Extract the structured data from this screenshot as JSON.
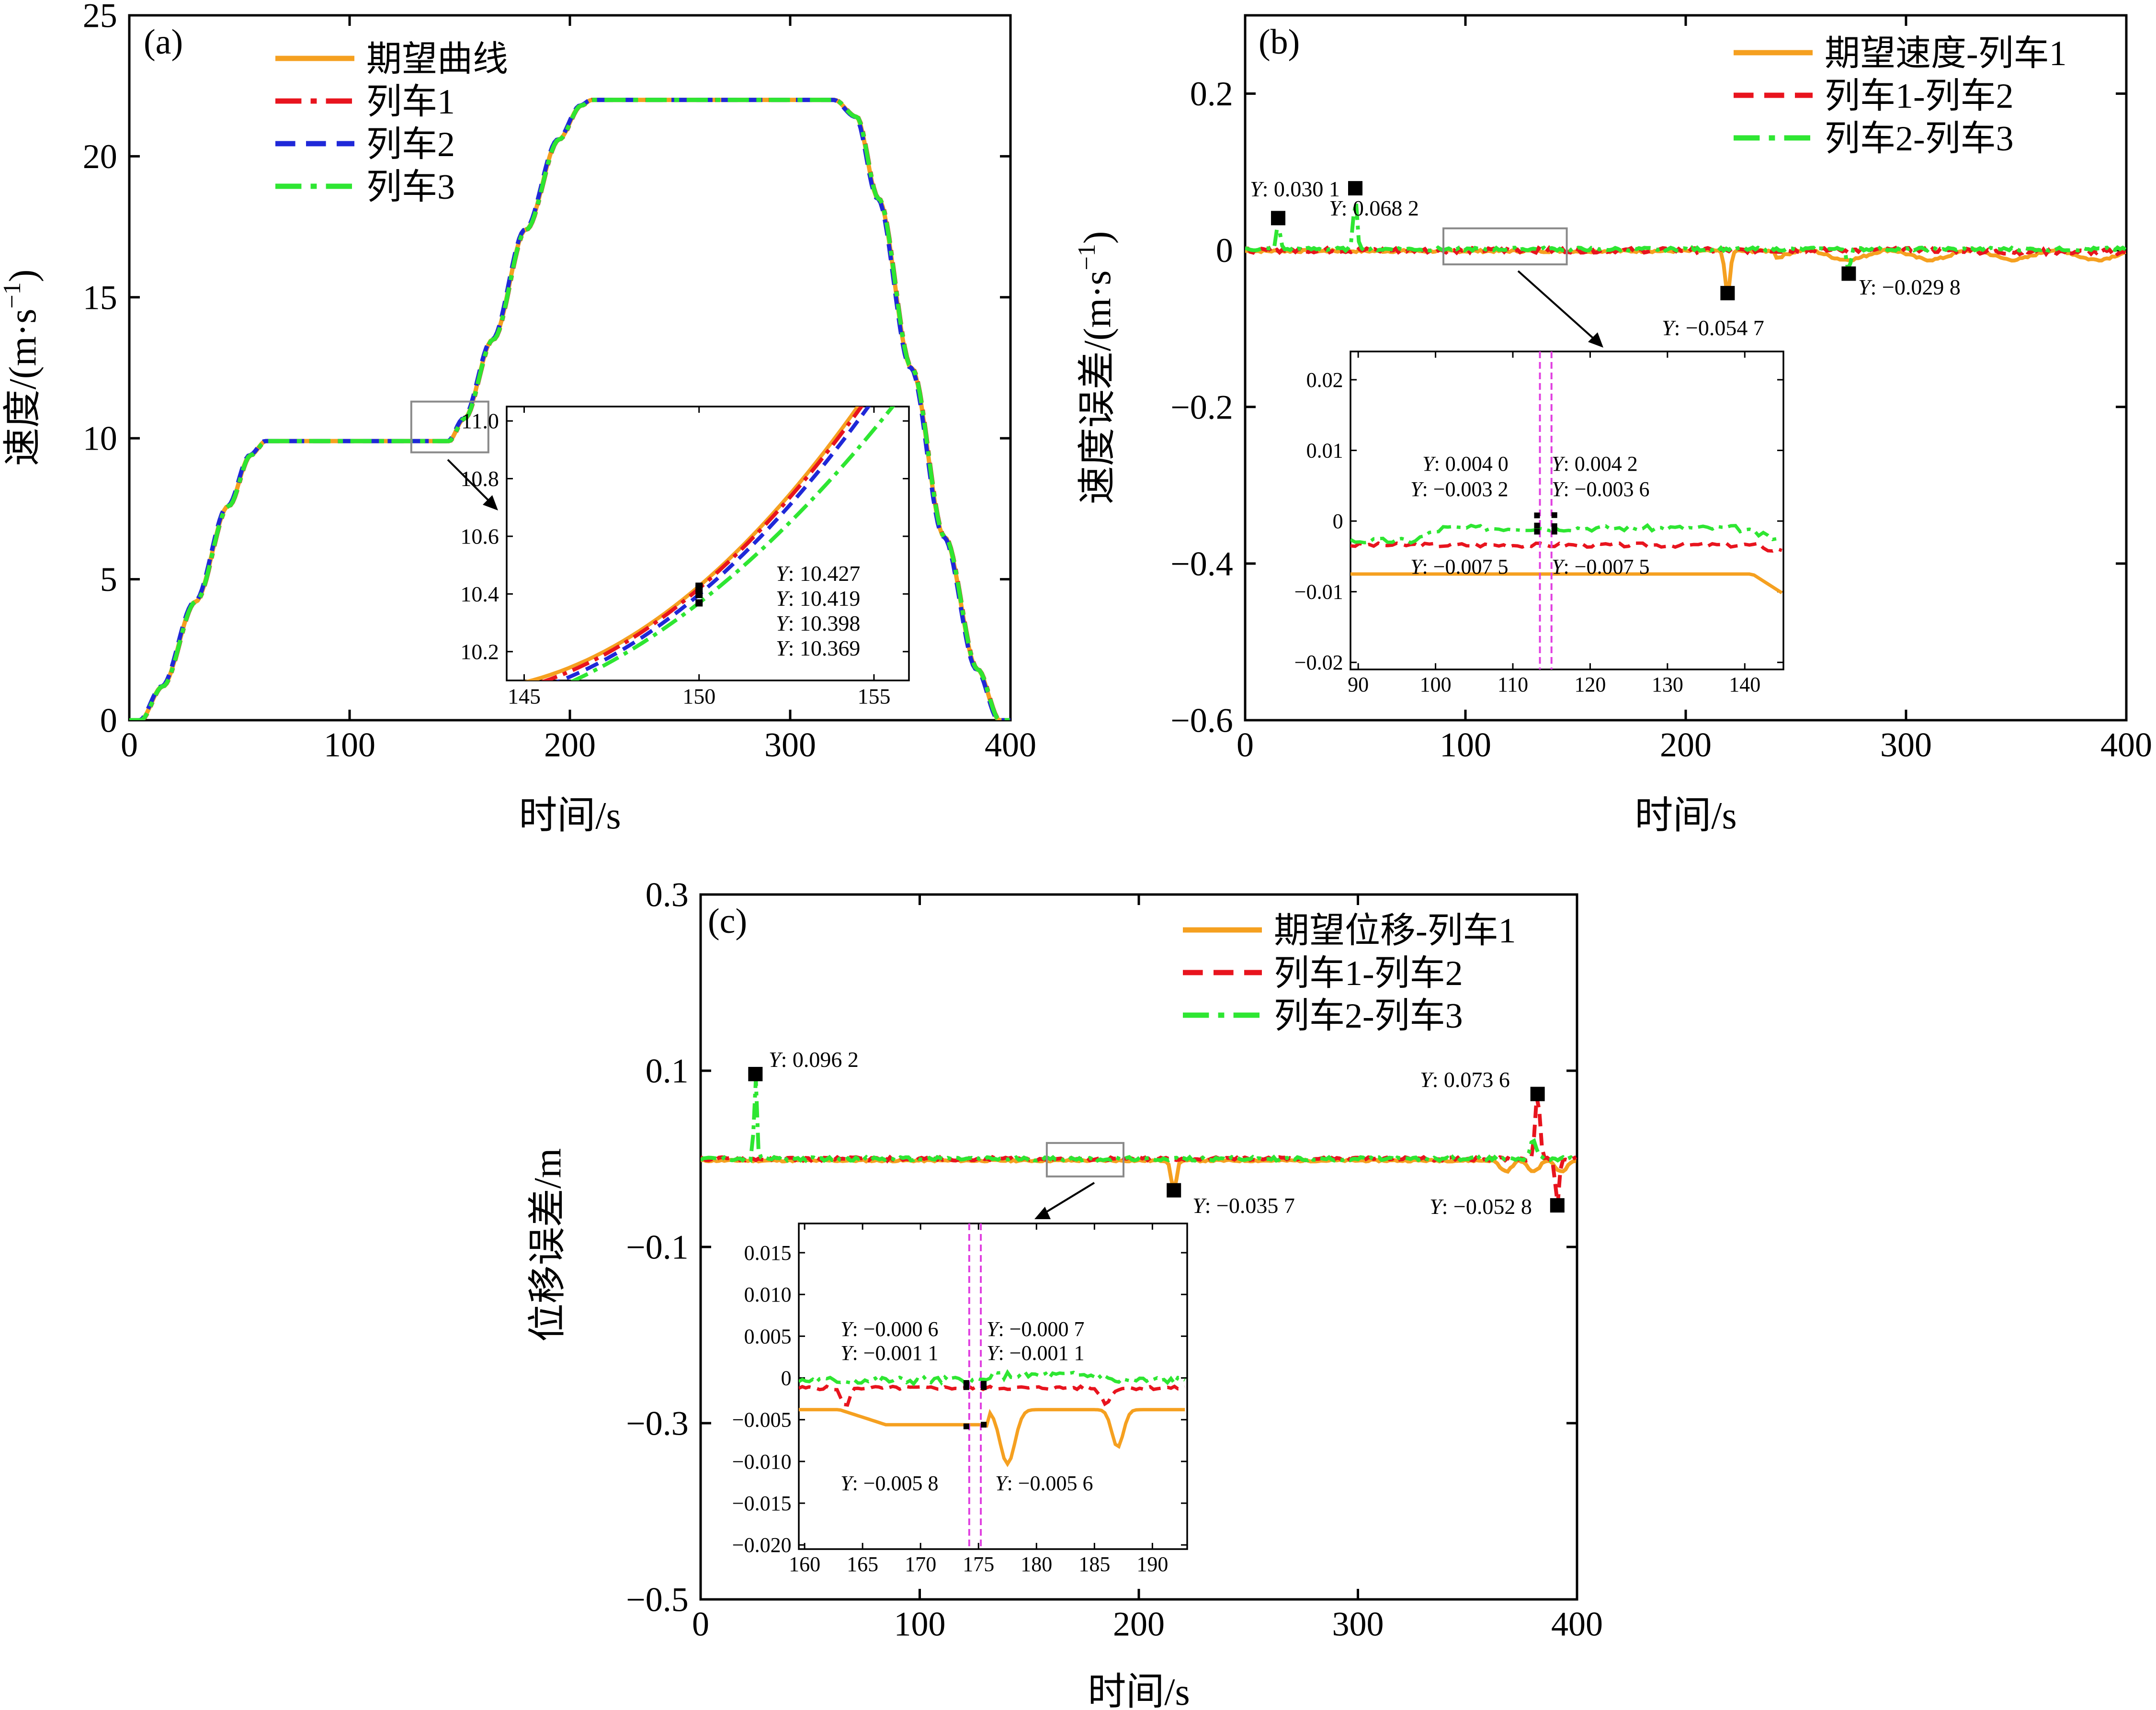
{
  "chart_data": [
    {
      "type": "line",
      "panel": "(a)",
      "xlabel": "时间/s",
      "ylabel": "速度/(m·s⁻¹)",
      "xlim": [
        0,
        400
      ],
      "ylim": [
        0,
        25
      ],
      "xticks": [
        "0",
        "100",
        "200",
        "300",
        "400"
      ],
      "yticks": [
        "0",
        "5",
        "10",
        "15",
        "20",
        "25"
      ],
      "legend": [
        "期望曲线",
        "列车1",
        "列车2",
        "列车3"
      ],
      "series": [
        {
          "name": "期望曲线",
          "color": "#f5a020",
          "dash": "solid"
        },
        {
          "name": "列车1",
          "color": "#e8141e",
          "dash": "dashdot"
        },
        {
          "name": "列车2",
          "color": "#1f28d8",
          "dash": "dash"
        },
        {
          "name": "列车3",
          "color": "#2ee632",
          "dash": "dashdot"
        }
      ],
      "profile_speed": [
        [
          0,
          0
        ],
        [
          5,
          0
        ],
        [
          15,
          1.2
        ],
        [
          30,
          4.2
        ],
        [
          45,
          7.6
        ],
        [
          55,
          9.4
        ],
        [
          62,
          9.9
        ],
        [
          145,
          9.9
        ],
        [
          152,
          10.7
        ],
        [
          165,
          13.5
        ],
        [
          180,
          17.4
        ],
        [
          195,
          20.6
        ],
        [
          205,
          21.8
        ],
        [
          210,
          22
        ],
        [
          320,
          22
        ],
        [
          330,
          21.4
        ],
        [
          340,
          18.5
        ],
        [
          355,
          12.5
        ],
        [
          370,
          6.5
        ],
        [
          385,
          1.8
        ],
        [
          395,
          0
        ],
        [
          400,
          0
        ]
      ],
      "inset": {
        "xlim": [
          144.5,
          156
        ],
        "ylim": [
          10.1,
          11.05
        ],
        "xticks": [
          "145",
          "150",
          "155"
        ],
        "yticks": [
          "10.2",
          "10.4",
          "10.6",
          "10.8",
          "11.0"
        ],
        "series": [
          {
            "name": "期望曲线",
            "points": [
              [
                144.5,
                10.08
              ],
              [
                150,
                10.427
              ],
              [
                154.6,
                11.06
              ]
            ]
          },
          {
            "name": "列车1",
            "points": [
              [
                144.5,
                10.06
              ],
              [
                150,
                10.419
              ],
              [
                154.7,
                11.06
              ]
            ]
          },
          {
            "name": "列车2",
            "points": [
              [
                144.5,
                10.04
              ],
              [
                150,
                10.398
              ],
              [
                154.9,
                11.06
              ]
            ]
          },
          {
            "name": "列车3",
            "points": [
              [
                144.5,
                10.01
              ],
              [
                150,
                10.369
              ],
              [
                155.6,
                11.06
              ]
            ]
          }
        ],
        "marker_x": 150,
        "markers": [
          10.427,
          10.419,
          10.398,
          10.369
        ],
        "annotations": [
          "Y: 10.427",
          "Y: 10.419",
          "Y: 10.398",
          "Y: 10.369"
        ]
      }
    },
    {
      "type": "line",
      "panel": "(b)",
      "xlabel": "时间/s",
      "ylabel": "速度误差/(m·s⁻¹)",
      "xlim": [
        0,
        400
      ],
      "ylim": [
        -0.6,
        0.3
      ],
      "xticks": [
        "0",
        "100",
        "200",
        "300",
        "400"
      ],
      "yticks": [
        "-0.6",
        "-0.4",
        "-0.2",
        "0",
        "0.2"
      ],
      "legend": [
        "期望速度-列车1",
        "列车1-列车2",
        "列车2-列车3"
      ],
      "series": [
        {
          "name": "期望速度-列车1",
          "color": "#f5a020",
          "dash": "solid"
        },
        {
          "name": "列车1-列车2",
          "color": "#e8141e",
          "dash": "dash"
        },
        {
          "name": "列车2-列车3",
          "color": "#2ee632",
          "dash": "dashdot"
        }
      ],
      "peaks": [
        {
          "x": 15,
          "y": 0.0301,
          "label": "Y: 0.030 1",
          "series": "列车2-列车3"
        },
        {
          "x": 50,
          "y": 0.0682,
          "label": "Y: 0.068 2",
          "series": "列车2-列车3"
        },
        {
          "x": 219,
          "y": -0.0547,
          "label": "Y: -0.054 7",
          "series": "期望速度-列车1"
        },
        {
          "x": 274,
          "y": -0.0298,
          "label": "Y: -0.029 8",
          "series": "列车2-列车3"
        }
      ],
      "inset": {
        "xlim": [
          89,
          145
        ],
        "ylim": [
          -0.021,
          0.024
        ],
        "xticks": [
          "90",
          "100",
          "110",
          "120",
          "130",
          "140"
        ],
        "yticks": [
          "-0.02",
          "-0.01",
          "0",
          "0.01",
          "0.02"
        ],
        "vlines": [
          113.5,
          115
        ],
        "annotations": [
          {
            "text": "Y: 0.004 0",
            "value": 0.004
          },
          {
            "text": "Y: -0.003 2",
            "value": -0.0032
          },
          {
            "text": "Y: 0.004 2",
            "value": 0.0042
          },
          {
            "text": "Y: -0.003 6",
            "value": -0.0036
          },
          {
            "text": "Y: -0.007 5",
            "value": -0.0075
          },
          {
            "text": "Y: -0.007 5",
            "value": -0.0075
          }
        ]
      }
    },
    {
      "type": "line",
      "panel": "(c)",
      "xlabel": "时间/s",
      "ylabel": "位移误差/m",
      "xlim": [
        0,
        400
      ],
      "ylim": [
        -0.5,
        0.3
      ],
      "xticks": [
        "0",
        "100",
        "200",
        "300",
        "400"
      ],
      "yticks": [
        "-0.5",
        "-0.3",
        "-0.1",
        "0.1",
        "0.3"
      ],
      "legend": [
        "期望位移-列车1",
        "列车1-列车2",
        "列车2-列车3"
      ],
      "series": [
        {
          "name": "期望位移-列车1",
          "color": "#f5a020",
          "dash": "solid"
        },
        {
          "name": "列车1-列车2",
          "color": "#e8141e",
          "dash": "dash"
        },
        {
          "name": "列车2-列车3",
          "color": "#2ee632",
          "dash": "dashdot"
        }
      ],
      "peaks": [
        {
          "x": 25,
          "y": 0.0962,
          "label": "Y: 0.096 2",
          "series": "列车2-列车3"
        },
        {
          "x": 216,
          "y": -0.0357,
          "label": "Y: -0.035 7",
          "series": "期望位移-列车1"
        },
        {
          "x": 382,
          "y": 0.0736,
          "label": "Y: 0.073 6",
          "series": "列车1-列车2"
        },
        {
          "x": 391,
          "y": -0.0528,
          "label": "Y: -0.052 8",
          "series": "列车1-列车2"
        }
      ],
      "inset": {
        "xlim": [
          159.5,
          193
        ],
        "ylim": [
          -0.0205,
          0.0185
        ],
        "xticks": [
          "160",
          "165",
          "170",
          "175",
          "180",
          "185",
          "190"
        ],
        "yticks": [
          "-0.020",
          "-0.015",
          "-0.010",
          "-0.005",
          "0",
          "0.005",
          "0.010",
          "0.015"
        ],
        "vlines": [
          174.2,
          175.2
        ],
        "annotations": [
          {
            "text": "Y: -0.000 6",
            "value": -0.0006
          },
          {
            "text": "Y: -0.001 1",
            "value": -0.0011
          },
          {
            "text": "Y: -0.000 7",
            "value": -0.0007
          },
          {
            "text": "Y: -0.001 1",
            "value": -0.0011
          },
          {
            "text": "Y: -0.005 8",
            "value": -0.0058
          },
          {
            "text": "Y: -0.005 6",
            "value": -0.0056
          }
        ]
      }
    }
  ]
}
